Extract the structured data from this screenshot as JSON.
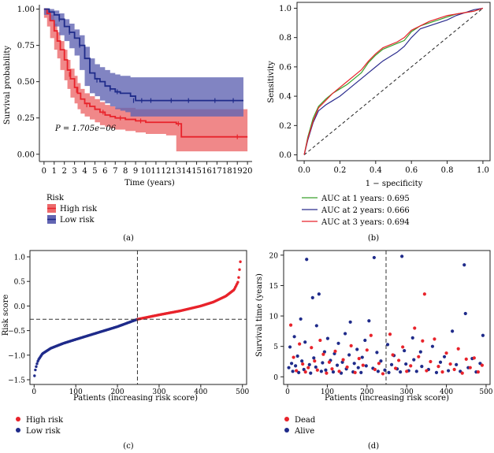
{
  "chart_data": [
    {
      "panel": "(a)",
      "type": "line",
      "subtype": "kaplan-meier",
      "title": "",
      "xlabel": "Time (years)",
      "ylabel": "Survival probability",
      "xlim": [
        -0.3,
        20.3
      ],
      "ylim": [
        -0.05,
        1.03
      ],
      "xticks": [
        0,
        1,
        2,
        3,
        4,
        5,
        6,
        7,
        8,
        9,
        10,
        11,
        12,
        13,
        14,
        15,
        16,
        17,
        18,
        19,
        20
      ],
      "yticks": [
        "0.00",
        "0.25",
        "0.50",
        "0.75",
        "1.00"
      ],
      "annotation": "P = 1.705e−06",
      "legend_title": "Risk",
      "series": [
        {
          "name": "High risk",
          "color": "#e8232b",
          "band_color": "#ec6a6c",
          "x": [
            0,
            0.3,
            0.6,
            1,
            1.3,
            1.6,
            2,
            2.3,
            2.6,
            3,
            3.3,
            3.6,
            4,
            4.5,
            5,
            5.5,
            6,
            6.5,
            7,
            8,
            9,
            10,
            11,
            12,
            13,
            13.5,
            19,
            20
          ],
          "y": [
            1,
            0.97,
            0.92,
            0.85,
            0.78,
            0.72,
            0.65,
            0.58,
            0.52,
            0.46,
            0.42,
            0.38,
            0.35,
            0.33,
            0.31,
            0.29,
            0.27,
            0.26,
            0.25,
            0.24,
            0.23,
            0.22,
            0.22,
            0.22,
            0.21,
            0.12,
            0.12,
            0.12
          ],
          "upper": [
            1,
            0.99,
            0.96,
            0.9,
            0.84,
            0.78,
            0.72,
            0.65,
            0.59,
            0.54,
            0.49,
            0.45,
            0.42,
            0.4,
            0.38,
            0.36,
            0.34,
            0.33,
            0.32,
            0.32,
            0.31,
            0.31,
            0.31,
            0.31,
            0.31,
            0.31,
            0.31,
            0.31
          ],
          "lower": [
            1,
            0.94,
            0.88,
            0.8,
            0.72,
            0.66,
            0.58,
            0.51,
            0.45,
            0.39,
            0.35,
            0.31,
            0.28,
            0.26,
            0.24,
            0.22,
            0.2,
            0.19,
            0.18,
            0.17,
            0.16,
            0.15,
            0.14,
            0.14,
            0.13,
            0.02,
            0.02,
            0.02
          ],
          "censor_x": [
            2.5,
            3.2,
            4.2,
            5.8,
            7.5,
            9.5,
            13.2,
            19.0
          ],
          "censor_y": [
            0.55,
            0.44,
            0.34,
            0.29,
            0.25,
            0.23,
            0.21,
            0.12
          ]
        },
        {
          "name": "Low risk",
          "color": "#1f2b8a",
          "band_color": "#6265b3",
          "x": [
            0,
            0.5,
            1,
            1.5,
            2,
            2.5,
            3,
            3.5,
            4,
            4.5,
            5,
            5.5,
            6,
            6.5,
            7,
            7.5,
            8,
            8.5,
            9,
            10,
            12,
            14,
            16,
            18,
            19,
            19.6
          ],
          "y": [
            1,
            0.98,
            0.96,
            0.93,
            0.88,
            0.84,
            0.8,
            0.75,
            0.66,
            0.56,
            0.52,
            0.5,
            0.47,
            0.45,
            0.43,
            0.42,
            0.42,
            0.4,
            0.37,
            0.37,
            0.37,
            0.37,
            0.37,
            0.37,
            0.37,
            0.37
          ],
          "upper": [
            1,
            1.0,
            0.99,
            0.97,
            0.93,
            0.9,
            0.86,
            0.82,
            0.74,
            0.66,
            0.62,
            0.6,
            0.58,
            0.56,
            0.55,
            0.54,
            0.54,
            0.53,
            0.53,
            0.53,
            0.53,
            0.53,
            0.53,
            0.53,
            0.53,
            0.53
          ],
          "lower": [
            1,
            0.96,
            0.92,
            0.88,
            0.82,
            0.78,
            0.73,
            0.68,
            0.58,
            0.47,
            0.42,
            0.4,
            0.37,
            0.35,
            0.33,
            0.31,
            0.3,
            0.29,
            0.26,
            0.26,
            0.26,
            0.26,
            0.26,
            0.26,
            0.26,
            0.26
          ],
          "censor_x": [
            1.5,
            2.5,
            3.5,
            5.2,
            6.5,
            7.2,
            8.8,
            9.6,
            10.5,
            12.5,
            14.2,
            16.8,
            18.6
          ],
          "censor_y": [
            0.93,
            0.84,
            0.75,
            0.51,
            0.45,
            0.43,
            0.37,
            0.37,
            0.37,
            0.37,
            0.37,
            0.37,
            0.37
          ]
        }
      ]
    },
    {
      "panel": "(b)",
      "type": "line",
      "subtype": "roc",
      "title": "",
      "xlabel": "1 − specificity",
      "ylabel": "Sensitivity",
      "xlim": [
        -0.04,
        1.04
      ],
      "ylim": [
        -0.04,
        1.04
      ],
      "xticks": [
        "0.0",
        "0.2",
        "0.4",
        "0.6",
        "0.8",
        "1.0"
      ],
      "yticks": [
        "0.0",
        "0.2",
        "0.4",
        "0.6",
        "0.8",
        "1.0"
      ],
      "series": [
        {
          "name": "AUC at 1 years: 0.695",
          "color": "#3aa02c",
          "x": [
            0,
            0.02,
            0.05,
            0.08,
            0.12,
            0.16,
            0.2,
            0.24,
            0.28,
            0.32,
            0.36,
            0.4,
            0.44,
            0.48,
            0.52,
            0.56,
            0.6,
            0.65,
            0.7,
            0.75,
            0.8,
            0.85,
            0.9,
            0.95,
            1.0
          ],
          "y": [
            0,
            0.12,
            0.25,
            0.33,
            0.38,
            0.42,
            0.45,
            0.48,
            0.52,
            0.56,
            0.63,
            0.68,
            0.72,
            0.74,
            0.76,
            0.78,
            0.84,
            0.88,
            0.9,
            0.92,
            0.94,
            0.96,
            0.97,
            0.98,
            1.0
          ]
        },
        {
          "name": "AUC at 2 years: 0.666",
          "color": "#2b2c8e",
          "x": [
            0,
            0.02,
            0.05,
            0.08,
            0.12,
            0.16,
            0.2,
            0.24,
            0.28,
            0.32,
            0.36,
            0.4,
            0.44,
            0.48,
            0.52,
            0.56,
            0.6,
            0.65,
            0.7,
            0.75,
            0.8,
            0.85,
            0.9,
            0.95,
            1.0
          ],
          "y": [
            0,
            0.1,
            0.22,
            0.3,
            0.34,
            0.37,
            0.4,
            0.44,
            0.48,
            0.52,
            0.56,
            0.6,
            0.64,
            0.67,
            0.7,
            0.74,
            0.8,
            0.86,
            0.88,
            0.9,
            0.92,
            0.95,
            0.97,
            0.99,
            1.0
          ]
        },
        {
          "name": "AUC at 3 years: 0.694",
          "color": "#e8232b",
          "x": [
            0,
            0.02,
            0.05,
            0.08,
            0.12,
            0.16,
            0.2,
            0.24,
            0.28,
            0.32,
            0.36,
            0.4,
            0.44,
            0.48,
            0.52,
            0.56,
            0.6,
            0.65,
            0.7,
            0.75,
            0.8,
            0.85,
            0.9,
            0.95,
            1.0
          ],
          "y": [
            0,
            0.11,
            0.23,
            0.32,
            0.37,
            0.42,
            0.46,
            0.5,
            0.54,
            0.58,
            0.64,
            0.69,
            0.73,
            0.75,
            0.77,
            0.8,
            0.85,
            0.88,
            0.91,
            0.93,
            0.95,
            0.96,
            0.97,
            0.98,
            1.0
          ]
        }
      ],
      "reference_line": "diagonal dashed"
    },
    {
      "panel": "(c)",
      "type": "scatter",
      "title": "",
      "xlabel": "Patients (increasing risk score)",
      "ylabel": "Risk score",
      "xlim": [
        -10,
        510
      ],
      "ylim": [
        -1.5,
        1.0
      ],
      "xticks": [
        0,
        100,
        200,
        300,
        400,
        500
      ],
      "yticks": [
        "−1.5",
        "−1.0",
        "−0.5",
        "0.0",
        "0.5",
        "1.0"
      ],
      "n_patients": 495,
      "cutoff_index": 248,
      "cutoff_value": -0.27,
      "curve_points": [
        [
          1,
          -1.42
        ],
        [
          3,
          -1.3
        ],
        [
          6,
          -1.2
        ],
        [
          10,
          -1.1
        ],
        [
          20,
          -0.97
        ],
        [
          40,
          -0.86
        ],
        [
          70,
          -0.76
        ],
        [
          100,
          -0.68
        ],
        [
          150,
          -0.55
        ],
        [
          200,
          -0.42
        ],
        [
          248,
          -0.27
        ],
        [
          300,
          -0.18
        ],
        [
          350,
          -0.1
        ],
        [
          400,
          0.0
        ],
        [
          430,
          0.08
        ],
        [
          460,
          0.2
        ],
        [
          480,
          0.33
        ],
        [
          490,
          0.5
        ],
        [
          495,
          0.9
        ]
      ],
      "series": [
        {
          "name": "High risk",
          "color": "#e8232b"
        },
        {
          "name": "Low risk",
          "color": "#1f2b8a"
        }
      ]
    },
    {
      "panel": "(d)",
      "type": "scatter",
      "title": "",
      "xlabel": "Patients (increasing risk score)",
      "ylabel": "Survival time (years)",
      "xlim": [
        -10,
        510
      ],
      "ylim": [
        -1,
        20.5
      ],
      "xticks": [
        0,
        100,
        200,
        300,
        400,
        500
      ],
      "yticks": [
        0,
        5,
        10,
        15,
        20
      ],
      "cutoff_index": 248,
      "series": [
        {
          "name": "Dead",
          "color": "#e8232b",
          "x": [
            8,
            15,
            22,
            30,
            38,
            45,
            52,
            60,
            68,
            75,
            82,
            90,
            98,
            105,
            112,
            120,
            130,
            140,
            150,
            160,
            170,
            180,
            190,
            200,
            210,
            220,
            230,
            240,
            258,
            265,
            272,
            280,
            290,
            300,
            310,
            320,
            330,
            340,
            345,
            350,
            360,
            370,
            380,
            390,
            400,
            410,
            420,
            430,
            440,
            450,
            460,
            470,
            480,
            490
          ],
          "y": [
            8.5,
            3.2,
            1.0,
            5.4,
            2.1,
            0.8,
            1.5,
            4.8,
            2.6,
            1.1,
            6.0,
            3.7,
            0.6,
            2.4,
            1.3,
            4.2,
            0.9,
            2.8,
            1.6,
            5.1,
            0.7,
            3.0,
            1.9,
            4.4,
            6.8,
            1.2,
            2.2,
            0.5,
            7.0,
            3.6,
            1.4,
            2.7,
            4.9,
            0.9,
            1.8,
            8.0,
            3.3,
            5.9,
            13.6,
            1.0,
            2.5,
            6.2,
            1.7,
            0.8,
            3.9,
            2.1,
            1.2,
            4.6,
            0.6,
            2.9,
            1.5,
            3.1,
            0.8,
            1.9
          ]
        },
        {
          "name": "Alive",
          "color": "#1f2b8a",
          "x": [
            3,
            6,
            10,
            13,
            17,
            20,
            25,
            28,
            33,
            36,
            41,
            44,
            48,
            55,
            58,
            63,
            66,
            71,
            73,
            79,
            85,
            88,
            93,
            96,
            101,
            108,
            115,
            118,
            125,
            128,
            135,
            138,
            145,
            148,
            155,
            158,
            165,
            168,
            175,
            178,
            185,
            188,
            195,
            198,
            205,
            215,
            218,
            225,
            228,
            235,
            245,
            252,
            255,
            262,
            268,
            276,
            284,
            288,
            294,
            298,
            305,
            315,
            318,
            325,
            335,
            338,
            355,
            365,
            375,
            385,
            395,
            405,
            415,
            425,
            435,
            445,
            448,
            455,
            465,
            475,
            485,
            492
          ],
          "y": [
            1.5,
            4.9,
            2.2,
            0.9,
            6.6,
            1.8,
            3.4,
            0.7,
            9.5,
            2.6,
            1.2,
            5.7,
            19.3,
            2.0,
            0.6,
            13.0,
            3.1,
            1.6,
            8.4,
            13.6,
            0.9,
            2.3,
            4.1,
            1.1,
            6.3,
            2.7,
            0.8,
            3.8,
            1.9,
            5.5,
            0.6,
            2.4,
            7.1,
            1.3,
            3.6,
            9.0,
            0.8,
            2.2,
            4.5,
            1.5,
            0.7,
            3.2,
            6.0,
            1.8,
            9.2,
            1.4,
            19.6,
            4.0,
            0.9,
            2.6,
            1.1,
            5.3,
            0.7,
            2.0,
            3.5,
            1.3,
            0.8,
            19.8,
            4.3,
            2.1,
            1.0,
            6.4,
            2.8,
            0.9,
            4.1,
            1.7,
            1.2,
            5.0,
            0.7,
            2.4,
            3.3,
            1.0,
            7.5,
            2.0,
            0.9,
            18.4,
            10.4,
            1.5,
            3.0,
            0.8,
            2.2,
            6.8
          ]
        }
      ]
    }
  ],
  "labels": {
    "panel_a": "(a)",
    "panel_b": "(b)",
    "panel_c": "(c)",
    "panel_d": "(d)",
    "km_annotation": "P = 1.705e−06",
    "km_xlabel": "Time (years)",
    "km_ylabel": "Survival probability",
    "km_legend_title": "Risk",
    "km_legend_high": "High risk",
    "km_legend_low": "Low risk",
    "roc_xlabel": "1 − specificity",
    "roc_ylabel": "Sensitivity",
    "roc_legend_1": "AUC at 1 years: 0.695",
    "roc_legend_2": "AUC at 2 years: 0.666",
    "roc_legend_3": "AUC at 3 years: 0.694",
    "risk_xlabel": "Patients (increasing risk score)",
    "risk_ylabel": "Risk score",
    "risk_legend_high": "High risk",
    "risk_legend_low": "Low risk",
    "surv_xlabel": "Patients (increasing risk score)",
    "surv_ylabel": "Survival time (years)",
    "surv_legend_dead": "Dead",
    "surv_legend_alive": "Alive"
  }
}
